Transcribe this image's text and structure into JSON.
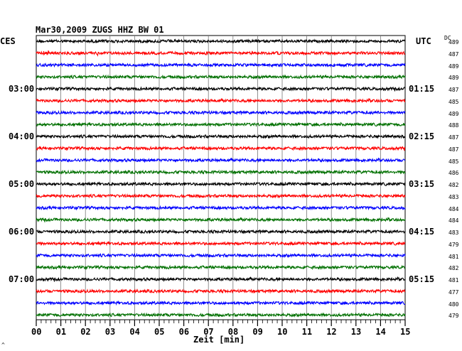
{
  "chart_data": {
    "type": "line",
    "title": "Mar30,2009   ZUGS HHZ BW 01",
    "left_axis_label": "CES",
    "right_axis_label": "UTC",
    "dc_header": "DC",
    "xlabel": "Zeit [min]",
    "xlim": [
      0,
      15
    ],
    "x_ticks": [
      "00",
      "01",
      "02",
      "03",
      "04",
      "05",
      "06",
      "07",
      "08",
      "09",
      "10",
      "11",
      "12",
      "13",
      "14",
      "15"
    ],
    "left_time_labels": [
      {
        "row": 4,
        "text": "03:00"
      },
      {
        "row": 8,
        "text": "04:00"
      },
      {
        "row": 12,
        "text": "05:00"
      },
      {
        "row": 16,
        "text": "06:00"
      },
      {
        "row": 20,
        "text": "07:00"
      }
    ],
    "right_time_labels": [
      {
        "row": 4,
        "text": "01:15"
      },
      {
        "row": 8,
        "text": "02:15"
      },
      {
        "row": 12,
        "text": "03:15"
      },
      {
        "row": 16,
        "text": "04:15"
      },
      {
        "row": 20,
        "text": "05:15"
      }
    ],
    "trace_colors": [
      "#000000",
      "#ff0000",
      "#0000ff",
      "#007000"
    ],
    "dc_offsets": [
      489,
      487,
      489,
      489,
      487,
      485,
      489,
      488,
      487,
      487,
      485,
      486,
      482,
      483,
      484,
      484,
      483,
      479,
      481,
      482,
      481,
      477,
      480,
      479
    ],
    "amplitude": "low, continuous background noise on all traces"
  },
  "footer_mark": "^"
}
